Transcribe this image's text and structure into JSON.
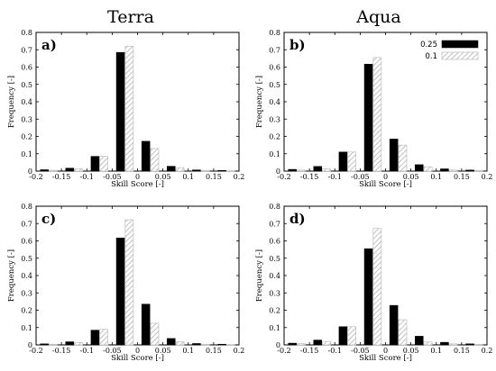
{
  "column_titles": [
    "Terra",
    "Aqua"
  ],
  "legend": [
    {
      "label": "0.25",
      "style": "solid",
      "color": "#000000"
    },
    {
      "label": "0.1",
      "style": "hatched",
      "color": "#aaaaaa"
    }
  ],
  "chart_data": [
    {
      "type": "bar",
      "panel_label": "a)",
      "xlabel": "Skill Score [-]",
      "ylabel": "Frequency [-]",
      "xlim": [
        -0.2,
        0.2
      ],
      "ylim": [
        0,
        0.8
      ],
      "xticks": [
        "-0.2",
        "-0.15",
        "-0.1",
        "-0.05",
        "0",
        "0.05",
        "0.1",
        "0.15",
        "0.2"
      ],
      "yticks": [
        "0",
        "0.1",
        "0.2",
        "0.3",
        "0.4",
        "0.5",
        "0.6",
        "0.7",
        "0.8"
      ],
      "x": [
        -0.15,
        -0.1,
        -0.05,
        0,
        0.05,
        0.1,
        0.15,
        0.2
      ],
      "series": [
        {
          "name": "0.25",
          "values": [
            0.008,
            0.017,
            0.085,
            0.685,
            0.172,
            0.028,
            0.007,
            0.004
          ]
        },
        {
          "name": "0.1",
          "values": [
            0.005,
            0.013,
            0.085,
            0.72,
            0.13,
            0.02,
            0.004,
            0.002
          ]
        }
      ]
    },
    {
      "type": "bar",
      "panel_label": "b)",
      "xlabel": "Skill Score [-]",
      "ylabel": "Frequency [-]",
      "xlim": [
        -0.2,
        0.2
      ],
      "ylim": [
        0,
        0.8
      ],
      "xticks": [
        "-0.2",
        "-0.15",
        "-0.1",
        "-0.05",
        "0",
        "0.05",
        "0.1",
        "0.15",
        "0.2"
      ],
      "yticks": [
        "0",
        "0.1",
        "0.2",
        "0.3",
        "0.4",
        "0.5",
        "0.6",
        "0.7",
        "0.8"
      ],
      "x": [
        -0.15,
        -0.1,
        -0.05,
        0,
        0.05,
        0.1,
        0.15,
        0.2
      ],
      "series": [
        {
          "name": "0.25",
          "values": [
            0.01,
            0.027,
            0.11,
            0.617,
            0.185,
            0.037,
            0.013,
            0.006
          ]
        },
        {
          "name": "0.1",
          "values": [
            0.006,
            0.013,
            0.11,
            0.655,
            0.15,
            0.025,
            0.006,
            0.003
          ]
        }
      ]
    },
    {
      "type": "bar",
      "panel_label": "c)",
      "xlabel": "Skill Score [-]",
      "ylabel": "Frequency [-]",
      "xlim": [
        -0.2,
        0.2
      ],
      "ylim": [
        0,
        0.8
      ],
      "xticks": [
        "-0.2",
        "-0.15",
        "-0.1",
        "-0.05",
        "0",
        "0.05",
        "0.1",
        "0.15",
        "0.2"
      ],
      "yticks": [
        "0",
        "0.1",
        "0.2",
        "0.3",
        "0.4",
        "0.5",
        "0.6",
        "0.7",
        "0.8"
      ],
      "x": [
        -0.15,
        -0.1,
        -0.05,
        0,
        0.05,
        0.1,
        0.15,
        0.2
      ],
      "series": [
        {
          "name": "0.25",
          "values": [
            0.006,
            0.018,
            0.085,
            0.617,
            0.235,
            0.037,
            0.008,
            0.004
          ]
        },
        {
          "name": "0.1",
          "values": [
            0.004,
            0.014,
            0.09,
            0.722,
            0.125,
            0.018,
            0.004,
            0.002
          ]
        }
      ]
    },
    {
      "type": "bar",
      "panel_label": "d)",
      "xlabel": "Skill Score [-]",
      "ylabel": "Frequency [-]",
      "xlim": [
        -0.2,
        0.2
      ],
      "ylim": [
        0,
        0.8
      ],
      "xticks": [
        "-0.2",
        "-0.15",
        "-0.1",
        "-0.05",
        "0",
        "0.05",
        "0.1",
        "0.15",
        "0.2"
      ],
      "yticks": [
        "0",
        "0.1",
        "0.2",
        "0.3",
        "0.4",
        "0.5",
        "0.6",
        "0.7",
        "0.8"
      ],
      "x": [
        -0.15,
        -0.1,
        -0.05,
        0,
        0.05,
        0.1,
        0.15,
        0.2
      ],
      "series": [
        {
          "name": "0.25",
          "values": [
            0.01,
            0.028,
            0.105,
            0.555,
            0.228,
            0.05,
            0.015,
            0.006
          ]
        },
        {
          "name": "0.1",
          "values": [
            0.007,
            0.02,
            0.105,
            0.672,
            0.145,
            0.017,
            0.006,
            0.003
          ]
        }
      ]
    }
  ]
}
